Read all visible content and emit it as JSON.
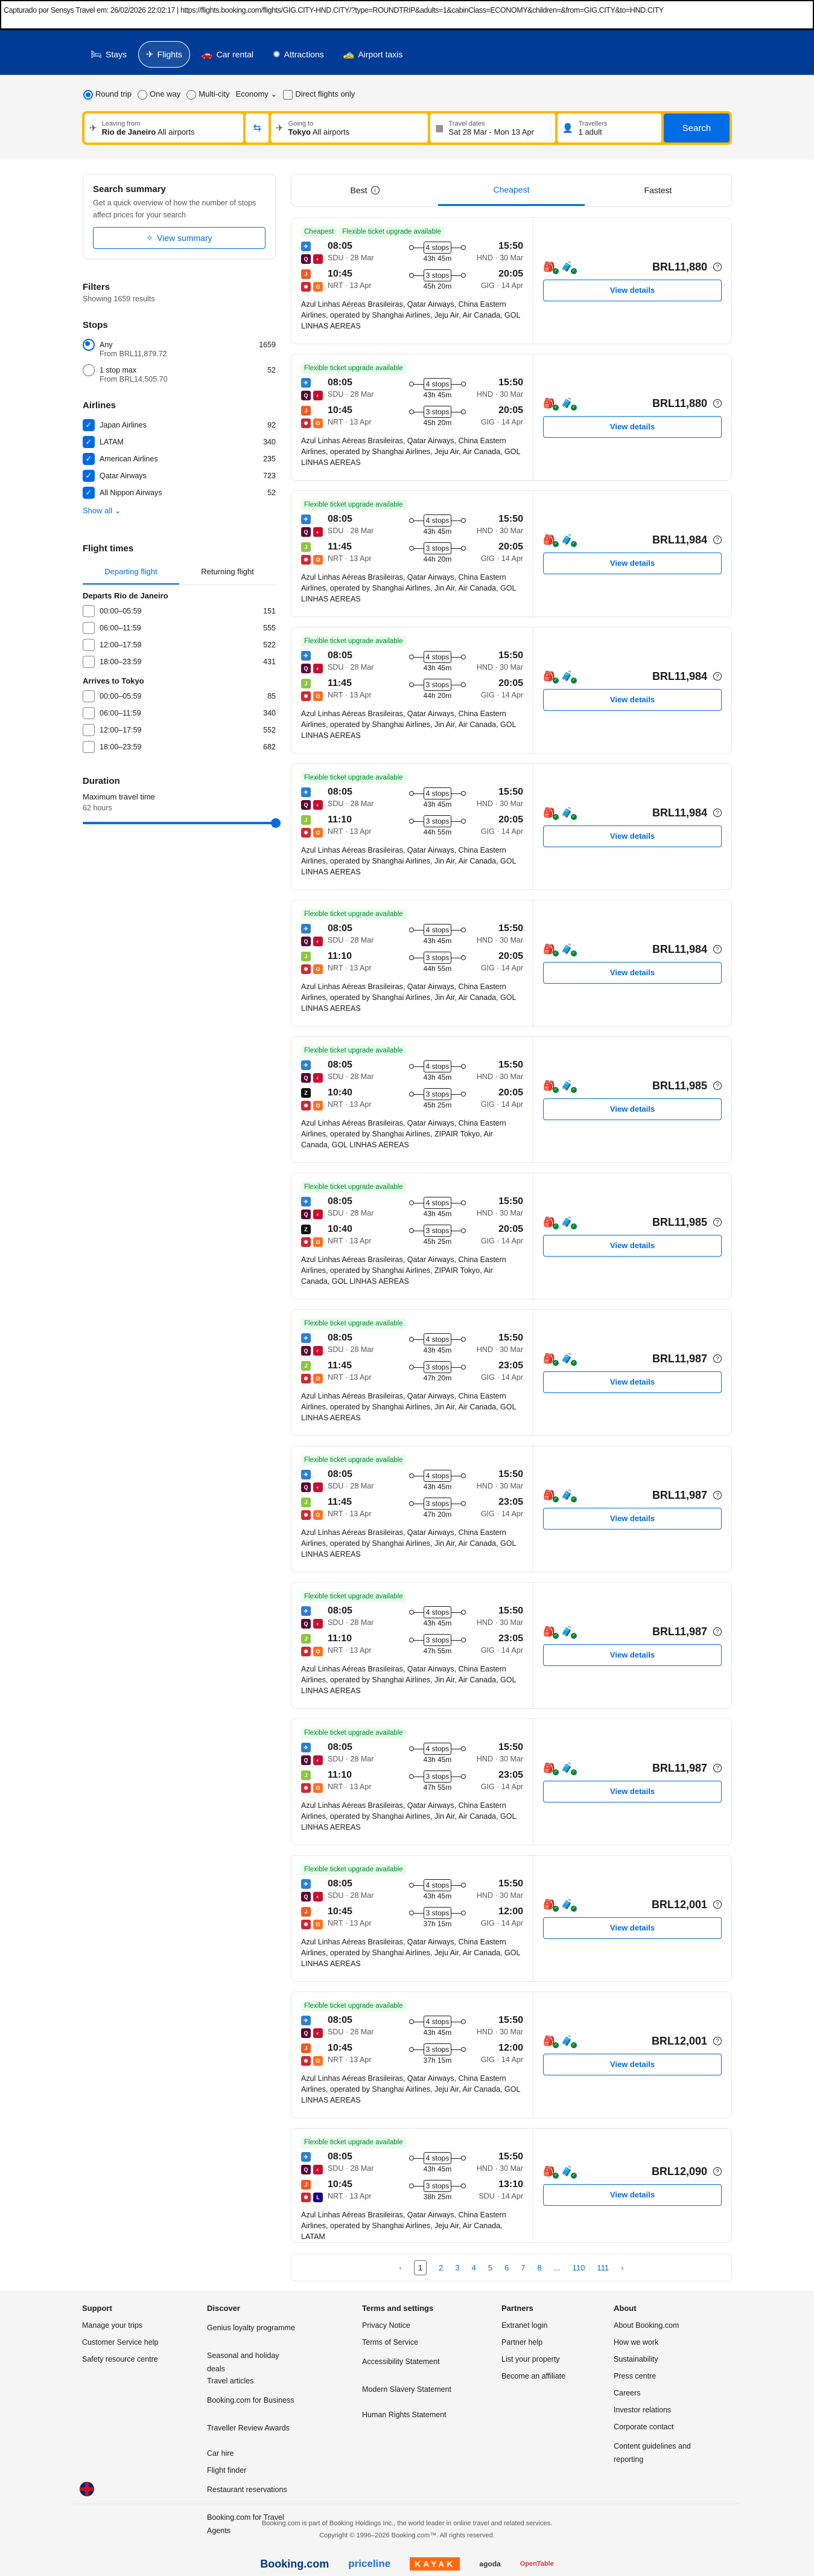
{
  "caption": "Capturado por Sensys Travel em: 26/02/2026 22:02:17  |  https://flights.booking.com/flights/GIG.CITY-HND.CITY/?type=ROUNDTRIP&adults=1&cabinClass=ECONOMY&children=&from=GIG.CITY&to=HND.CITY",
  "nav": [
    {
      "label": "Stays",
      "icon": "bed-icon"
    },
    {
      "label": "Flights",
      "icon": "plane-icon",
      "active": true
    },
    {
      "label": "Car rental",
      "icon": "car-icon"
    },
    {
      "label": "Attractions",
      "icon": "attractions-icon"
    },
    {
      "label": "Airport taxis",
      "icon": "taxi-icon"
    }
  ],
  "search": {
    "trip_types": [
      "Round trip",
      "One way",
      "Multi-city"
    ],
    "selected_trip_type": "Round trip",
    "cabin": "Economy",
    "direct_only": "Direct flights only",
    "from_label": "Leaving from",
    "from_city": "Rio de Janeiro",
    "from_sub": "All airports",
    "to_label": "Going to",
    "to_city": "Tokyo",
    "to_sub": "All airports",
    "dates_label": "Travel dates",
    "dates": "Sat 28 Mar - Mon 13 Apr",
    "travellers_label": "Travellers",
    "travellers": "1 adult",
    "button": "Search"
  },
  "summary": {
    "title": "Search summary",
    "text": "Get a quick overview of how the number of stops affect prices for your search",
    "button": "View summary"
  },
  "filters": {
    "title": "Filters",
    "showing": "Showing 1659 results",
    "stops_title": "Stops",
    "stops": [
      {
        "label": "Any",
        "count": "1659",
        "sub": "From BRL11,879.72",
        "selected": true
      },
      {
        "label": "1 stop max",
        "count": "52",
        "sub": "From BRL14,505.70",
        "selected": false
      }
    ],
    "airlines_title": "Airlines",
    "airlines": [
      {
        "label": "Japan Airlines",
        "count": "92"
      },
      {
        "label": "LATAM",
        "count": "340"
      },
      {
        "label": "American Airlines",
        "count": "235"
      },
      {
        "label": "Qatar Airways",
        "count": "723"
      },
      {
        "label": "All Nippon Airways",
        "count": "52"
      }
    ],
    "show_all": "Show all",
    "times_title": "Flight times",
    "times_tabs": [
      "Departing flight",
      "Returning flight"
    ],
    "departs_title": "Departs Rio de Janeiro",
    "departs": [
      {
        "label": "00:00–05:59",
        "count": "151"
      },
      {
        "label": "06:00–11:59",
        "count": "555"
      },
      {
        "label": "12:00–17:59",
        "count": "522"
      },
      {
        "label": "18:00–23:59",
        "count": "431"
      }
    ],
    "arrives_title": "Arrives to Tokyo",
    "arrives": [
      {
        "label": "00:00–05:59",
        "count": "85"
      },
      {
        "label": "06:00–11:59",
        "count": "340"
      },
      {
        "label": "12:00–17:59",
        "count": "552"
      },
      {
        "label": "18:00–23:59",
        "count": "682"
      }
    ],
    "duration_title": "Duration",
    "max_travel": "Maximum travel time",
    "max_value": "62 hours",
    "slider_percent": 100
  },
  "sort_tabs": [
    {
      "label": "Best"
    },
    {
      "label": "Cheapest",
      "active": true
    },
    {
      "label": "Fastest"
    }
  ],
  "outbound": {
    "dep": "08:05",
    "dep_ap": "SDU · 28 Mar",
    "stops": "4 stops",
    "dur": "43h 45m",
    "arr": "15:50",
    "arr_ap": "HND · 30 Mar"
  },
  "results": [
    {
      "badges": [
        "Cheapest",
        "Flexible ticket upgrade available"
      ],
      "dep": "10:45",
      "dep_ap": "NRT · 13 Apr",
      "stops": "3 stops",
      "dur": "45h 20m",
      "arr": "20:05",
      "arr_ap": "GIG · 14 Apr",
      "logo": "jeju",
      "logo2": "gol",
      "ops": "Azul Linhas Aéreas Brasileiras, Qatar Airways, China Eastern Airlines, operated by Shanghai Airlines, Jeju Air, Air Canada, GOL LINHAS AEREAS",
      "price": "BRL11,880"
    },
    {
      "badges": [
        "Flexible ticket upgrade available"
      ],
      "dep": "10:45",
      "dep_ap": "NRT · 13 Apr",
      "stops": "3 stops",
      "dur": "45h 20m",
      "arr": "20:05",
      "arr_ap": "GIG · 14 Apr",
      "logo": "jeju",
      "logo2": "gol",
      "ops": "Azul Linhas Aéreas Brasileiras, Qatar Airways, China Eastern Airlines, operated by Shanghai Airlines, Jeju Air, Air Canada, GOL LINHAS AEREAS",
      "price": "BRL11,880"
    },
    {
      "badges": [
        "Flexible ticket upgrade available"
      ],
      "dep": "11:45",
      "dep_ap": "NRT · 13 Apr",
      "stops": "3 stops",
      "dur": "44h 20m",
      "arr": "20:05",
      "arr_ap": "GIG · 14 Apr",
      "logo": "jinair",
      "logo2": "gol",
      "ops": "Azul Linhas Aéreas Brasileiras, Qatar Airways, China Eastern Airlines, operated by Shanghai Airlines, Jin Air, Air Canada, GOL LINHAS AEREAS",
      "price": "BRL11,984"
    },
    {
      "badges": [
        "Flexible ticket upgrade available"
      ],
      "dep": "11:45",
      "dep_ap": "NRT · 13 Apr",
      "stops": "3 stops",
      "dur": "44h 20m",
      "arr": "20:05",
      "arr_ap": "GIG · 14 Apr",
      "logo": "jinair",
      "logo2": "gol",
      "ops": "Azul Linhas Aéreas Brasileiras, Qatar Airways, China Eastern Airlines, operated by Shanghai Airlines, Jin Air, Air Canada, GOL LINHAS AEREAS",
      "price": "BRL11,984"
    },
    {
      "badges": [
        "Flexible ticket upgrade available"
      ],
      "dep": "11:10",
      "dep_ap": "NRT · 13 Apr",
      "stops": "3 stops",
      "dur": "44h 55m",
      "arr": "20:05",
      "arr_ap": "GIG · 14 Apr",
      "logo": "jinair",
      "logo2": "gol",
      "ops": "Azul Linhas Aéreas Brasileiras, Qatar Airways, China Eastern Airlines, operated by Shanghai Airlines, Jin Air, Air Canada, GOL LINHAS AEREAS",
      "price": "BRL11,984"
    },
    {
      "badges": [
        "Flexible ticket upgrade available"
      ],
      "dep": "11:10",
      "dep_ap": "NRT · 13 Apr",
      "stops": "3 stops",
      "dur": "44h 55m",
      "arr": "20:05",
      "arr_ap": "GIG · 14 Apr",
      "logo": "jinair",
      "logo2": "gol",
      "ops": "Azul Linhas Aéreas Brasileiras, Qatar Airways, China Eastern Airlines, operated by Shanghai Airlines, Jin Air, Air Canada, GOL LINHAS AEREAS",
      "price": "BRL11,984"
    },
    {
      "badges": [
        "Flexible ticket upgrade available"
      ],
      "dep": "10:40",
      "dep_ap": "NRT · 13 Apr",
      "stops": "3 stops",
      "dur": "45h 25m",
      "arr": "20:05",
      "arr_ap": "GIG · 14 Apr",
      "logo": "zipair",
      "logo2": "gol",
      "ops": "Azul Linhas Aéreas Brasileiras, Qatar Airways, China Eastern Airlines, operated by Shanghai Airlines, ZIPAIR Tokyo, Air Canada, GOL LINHAS AEREAS",
      "price": "BRL11,985"
    },
    {
      "badges": [
        "Flexible ticket upgrade available"
      ],
      "dep": "10:40",
      "dep_ap": "NRT · 13 Apr",
      "stops": "3 stops",
      "dur": "45h 25m",
      "arr": "20:05",
      "arr_ap": "GIG · 14 Apr",
      "logo": "zipair",
      "logo2": "gol",
      "ops": "Azul Linhas Aéreas Brasileiras, Qatar Airways, China Eastern Airlines, operated by Shanghai Airlines, ZIPAIR Tokyo, Air Canada, GOL LINHAS AEREAS",
      "price": "BRL11,985"
    },
    {
      "badges": [
        "Flexible ticket upgrade available"
      ],
      "dep": "11:45",
      "dep_ap": "NRT · 13 Apr",
      "stops": "3 stops",
      "dur": "47h 20m",
      "arr": "23:05",
      "arr_ap": "GIG · 14 Apr",
      "logo": "jinair",
      "logo2": "gol",
      "ops": "Azul Linhas Aéreas Brasileiras, Qatar Airways, China Eastern Airlines, operated by Shanghai Airlines, Jin Air, Air Canada, GOL LINHAS AEREAS",
      "price": "BRL11,987"
    },
    {
      "badges": [
        "Flexible ticket upgrade available"
      ],
      "dep": "11:45",
      "dep_ap": "NRT · 13 Apr",
      "stops": "3 stops",
      "dur": "47h 20m",
      "arr": "23:05",
      "arr_ap": "GIG · 14 Apr",
      "logo": "jinair",
      "logo2": "gol",
      "ops": "Azul Linhas Aéreas Brasileiras, Qatar Airways, China Eastern Airlines, operated by Shanghai Airlines, Jin Air, Air Canada, GOL LINHAS AEREAS",
      "price": "BRL11,987"
    },
    {
      "badges": [
        "Flexible ticket upgrade available"
      ],
      "dep": "11:10",
      "dep_ap": "NRT · 13 Apr",
      "stops": "3 stops",
      "dur": "47h 55m",
      "arr": "23:05",
      "arr_ap": "GIG · 14 Apr",
      "logo": "jinair",
      "logo2": "gol",
      "ops": "Azul Linhas Aéreas Brasileiras, Qatar Airways, China Eastern Airlines, operated by Shanghai Airlines, Jin Air, Air Canada, GOL LINHAS AEREAS",
      "price": "BRL11,987"
    },
    {
      "badges": [
        "Flexible ticket upgrade available"
      ],
      "dep": "11:10",
      "dep_ap": "NRT · 13 Apr",
      "stops": "3 stops",
      "dur": "47h 55m",
      "arr": "23:05",
      "arr_ap": "GIG · 14 Apr",
      "logo": "jinair",
      "logo2": "gol",
      "ops": "Azul Linhas Aéreas Brasileiras, Qatar Airways, China Eastern Airlines, operated by Shanghai Airlines, Jin Air, Air Canada, GOL LINHAS AEREAS",
      "price": "BRL11,987"
    },
    {
      "badges": [
        "Flexible ticket upgrade available"
      ],
      "dep": "10:45",
      "dep_ap": "NRT · 13 Apr",
      "stops": "3 stops",
      "dur": "37h 15m",
      "arr": "12:00",
      "arr_ap": "GIG · 14 Apr",
      "logo": "jeju",
      "logo2": "gol",
      "ops": "Azul Linhas Aéreas Brasileiras, Qatar Airways, China Eastern Airlines, operated by Shanghai Airlines, Jeju Air, Air Canada, GOL LINHAS AEREAS",
      "price": "BRL12,001"
    },
    {
      "badges": [
        "Flexible ticket upgrade available"
      ],
      "dep": "10:45",
      "dep_ap": "NRT · 13 Apr",
      "stops": "3 stops",
      "dur": "37h 15m",
      "arr": "12:00",
      "arr_ap": "GIG · 14 Apr",
      "logo": "jeju",
      "logo2": "gol",
      "ops": "Azul Linhas Aéreas Brasileiras, Qatar Airways, China Eastern Airlines, operated by Shanghai Airlines, Jeju Air, Air Canada, GOL LINHAS AEREAS",
      "price": "BRL12,001"
    },
    {
      "badges": [
        "Flexible ticket upgrade available"
      ],
      "dep": "10:45",
      "dep_ap": "NRT · 13 Apr",
      "stops": "3 stops",
      "dur": "38h 25m",
      "arr": "13:10",
      "arr_ap": "SDU · 14 Apr",
      "logo": "jeju",
      "logo2": "latam",
      "ops": "Azul Linhas Aéreas Brasileiras, Qatar Airways, China Eastern Airlines, operated by Shanghai Airlines, Jeju Air, Air Canada, LATAM",
      "price": "BRL12,090"
    }
  ],
  "view_details": "View details",
  "pagination": {
    "pages": [
      "1",
      "2",
      "3",
      "4",
      "5",
      "6",
      "7",
      "8",
      "...",
      "110",
      "111"
    ],
    "current": "1"
  },
  "footer": {
    "columns": [
      {
        "title": "Support",
        "links": [
          "Manage your trips",
          "Customer Service help",
          "Safety resource centre"
        ]
      },
      {
        "title": "Discover",
        "links": [
          "Genius loyalty programme",
          "Seasonal and holiday deals",
          "Travel articles",
          "Booking.com for Business",
          "Traveller Review Awards",
          "Car hire",
          "Flight finder",
          "Restaurant reservations",
          "Booking.com for Travel Agents"
        ]
      },
      {
        "title": "Terms and settings",
        "links": [
          "Privacy Notice",
          "Terms of Service",
          "Accessibility Statement",
          "Modern Slavery Statement",
          "Human Rights Statement"
        ]
      },
      {
        "title": "Partners",
        "links": [
          "Extranet login",
          "Partner help",
          "List your property",
          "Become an affiliate"
        ]
      },
      {
        "title": "About",
        "links": [
          "About Booking.com",
          "How we work",
          "Sustainability",
          "Press centre",
          "Careers",
          "Investor relations",
          "Corporate contact",
          "Content guidelines and reporting"
        ]
      }
    ],
    "legal1": "Booking.com is part of Booking Holdings Inc., the world leader in online travel and related services.",
    "legal2": "Copyright © 1996–2026 Booking.com™. All rights reserved.",
    "brands": [
      "Booking.com",
      "priceline",
      "KAYAK",
      "agoda",
      "OpenTable"
    ]
  },
  "colors": {
    "brand_blue": "#003b95",
    "accent": "#006ce4",
    "search_border": "#ffb700",
    "badge_green": "#008234"
  }
}
